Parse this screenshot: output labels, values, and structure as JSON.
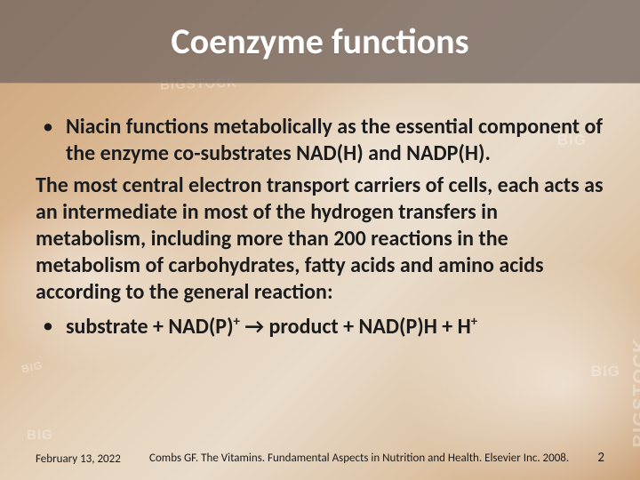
{
  "title": "Coenzyme functions",
  "bullet1_lead": "Niacin functions metabolically as the ",
  "bullet1_bold": "essential component of the enzyme co-substrates NAD(H) and NADP(H).",
  "paragraph": "The most central electron transport carriers of cells, each acts as an intermediate in most of the hydrogen transfers in metabolism, including more than 200 reactions in the metabolism of carbohydrates, fatty acids and amino acids according to the general reaction:",
  "reaction_sub": "substrate + NAD(P)",
  "reaction_mid": " → product + NAD(P)H + H",
  "footer": {
    "date": "February 13, 2022",
    "reference": "Combs GF. The Vitamins. Fundamental Aspects in Nutrition and Health. Elsevier Inc. 2008.",
    "page": "2"
  },
  "watermarks": {
    "big_short": "BIG",
    "bigstock": "BIGSTOCK"
  },
  "colors": {
    "title_band": "rgba(118,104,98,0.78)",
    "title_text": "#ffffff",
    "body_text": "#1b1b1b"
  }
}
